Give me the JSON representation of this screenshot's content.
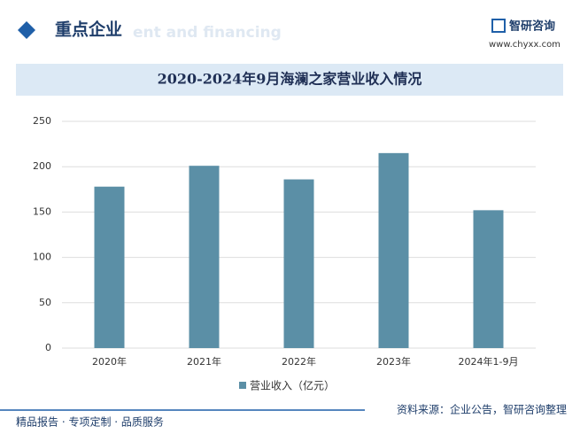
{
  "header": {
    "title": "重点企业",
    "subtitle_en": "ent and financing",
    "brand": "智研咨询",
    "url": "www.chyxx.com"
  },
  "chart_data": {
    "type": "bar",
    "title": "2020-2024年9月海澜之家营业收入情况",
    "categories": [
      "2020年",
      "2021年",
      "2022年",
      "2023年",
      "2024年1-9月"
    ],
    "series": [
      {
        "name": "营业收入（亿元）",
        "color": "#5b8fa6",
        "values": [
          178,
          201,
          186,
          215,
          152
        ]
      }
    ],
    "ylim": [
      0,
      250
    ],
    "yticks": [
      0,
      50,
      100,
      150,
      200,
      250
    ],
    "grid": true
  },
  "footer": {
    "left": "精品报告 · 专项定制 · 品质服务",
    "right": "资料来源：企业公告，智研咨询整理"
  }
}
